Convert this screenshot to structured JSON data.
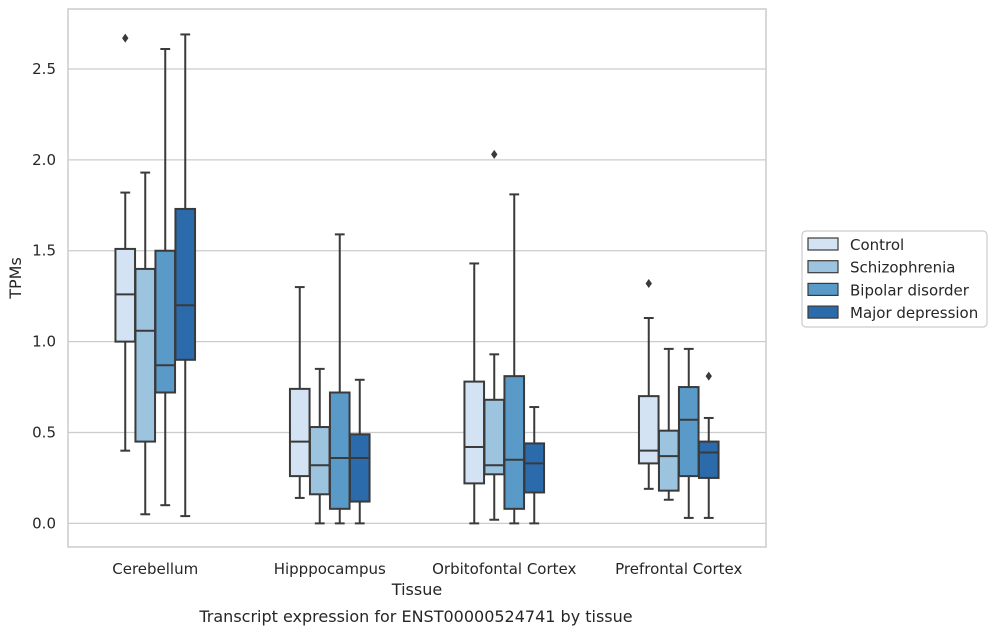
{
  "caption": "Transcript expression for ENST00000524741 by tissue",
  "chart_data": {
    "type": "box",
    "xlabel": "Tissue",
    "ylabel": "TPMs",
    "ylim": [
      -0.13,
      2.83
    ],
    "yticks": [
      0.0,
      0.5,
      1.0,
      1.5,
      2.0,
      2.5
    ],
    "ytick_labels": [
      "0.0",
      "0.5",
      "1.0",
      "1.5",
      "2.0",
      "2.5"
    ],
    "grid": "horizontal",
    "legend_position": "right",
    "categories": [
      "Cerebellum",
      "Hipppocampus",
      "Orbitofontal Cortex",
      "Prefrontal Cortex"
    ],
    "series": [
      {
        "name": "Control",
        "color": "#d4e3f3",
        "boxes": [
          {
            "whislo": 0.4,
            "q1": 1.0,
            "med": 1.26,
            "q3": 1.51,
            "whishi": 1.82,
            "fliers": [
              2.67
            ]
          },
          {
            "whislo": 0.14,
            "q1": 0.26,
            "med": 0.45,
            "q3": 0.74,
            "whishi": 1.3,
            "fliers": []
          },
          {
            "whislo": 0.0,
            "q1": 0.22,
            "med": 0.42,
            "q3": 0.78,
            "whishi": 1.43,
            "fliers": []
          },
          {
            "whislo": 0.19,
            "q1": 0.33,
            "med": 0.4,
            "q3": 0.7,
            "whishi": 1.13,
            "fliers": [
              1.32
            ]
          }
        ]
      },
      {
        "name": "Schizophrenia",
        "color": "#9dc4de",
        "boxes": [
          {
            "whislo": 0.05,
            "q1": 0.45,
            "med": 1.06,
            "q3": 1.4,
            "whishi": 1.93,
            "fliers": []
          },
          {
            "whislo": 0.0,
            "q1": 0.16,
            "med": 0.32,
            "q3": 0.53,
            "whishi": 0.85,
            "fliers": []
          },
          {
            "whislo": 0.02,
            "q1": 0.27,
            "med": 0.32,
            "q3": 0.68,
            "whishi": 0.93,
            "fliers": [
              2.03
            ]
          },
          {
            "whislo": 0.13,
            "q1": 0.18,
            "med": 0.37,
            "q3": 0.51,
            "whishi": 0.96,
            "fliers": []
          }
        ]
      },
      {
        "name": "Bipolar disorder",
        "color": "#5a9ac9",
        "boxes": [
          {
            "whislo": 0.1,
            "q1": 0.72,
            "med": 0.87,
            "q3": 1.5,
            "whishi": 2.61,
            "fliers": []
          },
          {
            "whislo": 0.0,
            "q1": 0.08,
            "med": 0.36,
            "q3": 0.72,
            "whishi": 1.59,
            "fliers": []
          },
          {
            "whislo": 0.0,
            "q1": 0.08,
            "med": 0.35,
            "q3": 0.81,
            "whishi": 1.81,
            "fliers": []
          },
          {
            "whislo": 0.03,
            "q1": 0.26,
            "med": 0.57,
            "q3": 0.75,
            "whishi": 0.96,
            "fliers": []
          }
        ]
      },
      {
        "name": "Major depression",
        "color": "#2b6aab",
        "boxes": [
          {
            "whislo": 0.04,
            "q1": 0.9,
            "med": 1.2,
            "q3": 1.73,
            "whishi": 2.69,
            "fliers": []
          },
          {
            "whislo": 0.0,
            "q1": 0.12,
            "med": 0.36,
            "q3": 0.49,
            "whishi": 0.79,
            "fliers": []
          },
          {
            "whislo": 0.0,
            "q1": 0.17,
            "med": 0.33,
            "q3": 0.44,
            "whishi": 0.64,
            "fliers": []
          },
          {
            "whislo": 0.03,
            "q1": 0.25,
            "med": 0.39,
            "q3": 0.45,
            "whishi": 0.58,
            "fliers": [
              0.81
            ]
          }
        ]
      }
    ]
  }
}
